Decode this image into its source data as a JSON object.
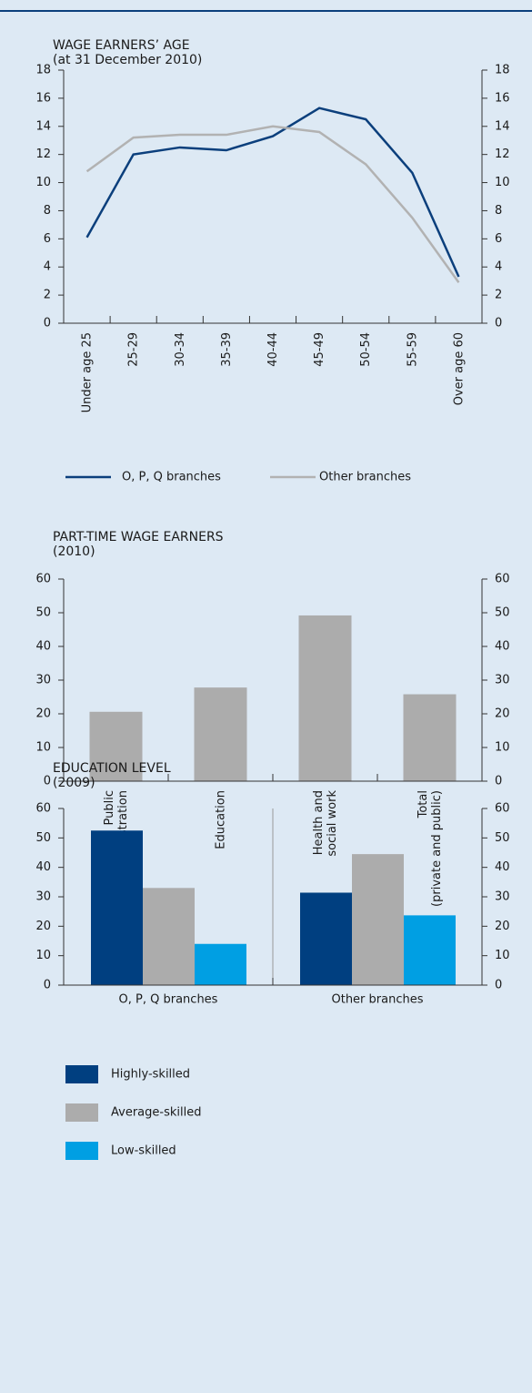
{
  "chart_data": [
    {
      "type": "line",
      "title": "WAGE EARNERS’ AGE",
      "subtitle": "(at 31 December 2010)",
      "categories": [
        [
          "Under age 25"
        ],
        [
          "25-29"
        ],
        [
          "30-34"
        ],
        [
          "35-39"
        ],
        [
          "40-44"
        ],
        [
          "45-49"
        ],
        [
          "50-54"
        ],
        [
          "55-59"
        ],
        [
          "Over age 60"
        ]
      ],
      "series": [
        {
          "name": "O, P, Q branches",
          "color": "#0b3f7c",
          "values": [
            6.1,
            12.0,
            12.5,
            12.3,
            13.3,
            15.3,
            14.5,
            10.7,
            3.3
          ]
        },
        {
          "name": "Other branches",
          "color": "#b2b2b2",
          "values": [
            10.8,
            13.2,
            13.4,
            13.4,
            14.0,
            13.6,
            11.3,
            7.5,
            2.9
          ]
        }
      ],
      "ylim": [
        0,
        18
      ],
      "yticks": [
        0,
        2,
        4,
        6,
        8,
        10,
        12,
        14,
        16,
        18
      ]
    },
    {
      "type": "bar",
      "title": "PART-TIME WAGE EARNERS",
      "subtitle": "(2010)",
      "categories": [
        [
          "Public",
          "administration"
        ],
        [
          "Education"
        ],
        [
          "Health and",
          "social work"
        ],
        [
          "Total",
          "(private and public)"
        ]
      ],
      "series": [
        {
          "color": "#acacac",
          "values": [
            20.6,
            27.8,
            49.2,
            25.8
          ]
        }
      ],
      "ylim": [
        0,
        60
      ],
      "yticks": [
        0,
        10,
        20,
        30,
        40,
        50,
        60
      ]
    },
    {
      "type": "grouped-bar",
      "title": "EDUCATION LEVEL",
      "subtitle": "(2009)",
      "categories": [
        [
          "O, P, Q branches"
        ],
        [
          "Other branches"
        ]
      ],
      "series": [
        {
          "name": "Highly-skilled",
          "color": "#003f80",
          "values": [
            52.5,
            31.4
          ]
        },
        {
          "name": "Average-skilled",
          "color": "#acacac",
          "values": [
            33.0,
            44.5
          ]
        },
        {
          "name": "Low-skilled",
          "color": "#009fe3",
          "values": [
            14.0,
            23.7
          ]
        }
      ],
      "ylim": [
        0,
        60
      ],
      "yticks": [
        0,
        10,
        20,
        30,
        40,
        50,
        60
      ]
    }
  ]
}
